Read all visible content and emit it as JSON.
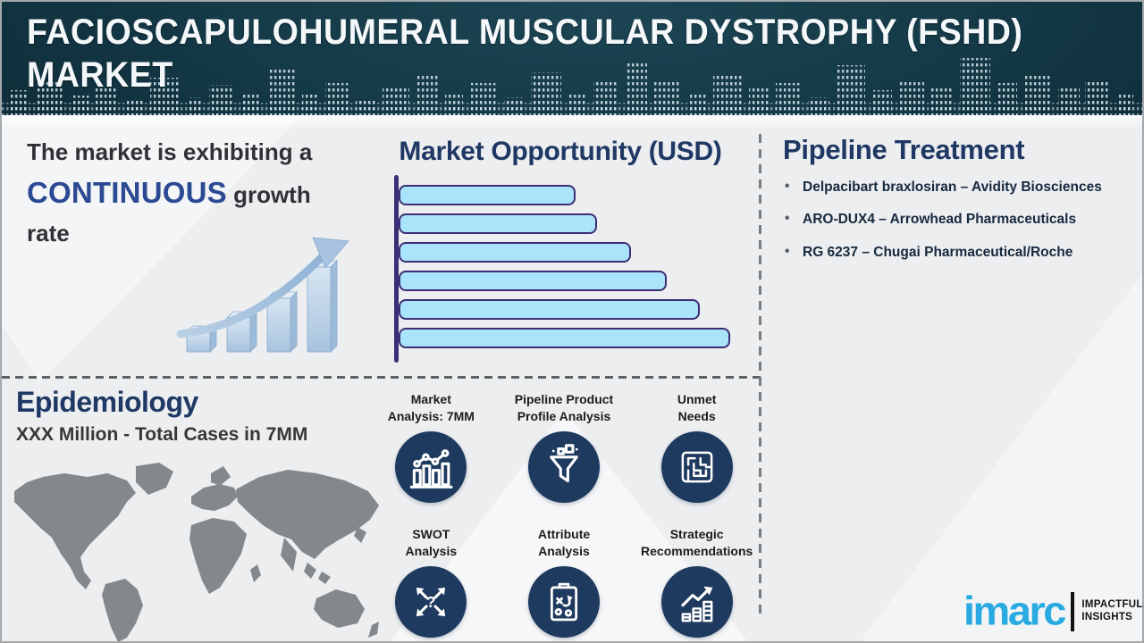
{
  "header": {
    "title": "FACIOSCAPULOHUMERAL MUSCULAR DYSTROPHY (FSHD)\nMARKET"
  },
  "growth_statement": {
    "prefix": "The market is exhibiting a",
    "highlight": "CONTINUOUS",
    "suffix": " growth\nrate"
  },
  "epidemiology": {
    "title": "Epidemiology",
    "subtitle": "XXX Million - Total Cases in 7MM"
  },
  "chart_data": {
    "type": "bar",
    "orientation": "horizontal",
    "title": "Market Opportunity (USD)",
    "categories": [
      "bar-1",
      "bar-2",
      "bar-3",
      "bar-4",
      "bar-5",
      "bar-6"
    ],
    "values_pct_of_plot": [
      49.7,
      55.8,
      65.3,
      75.4,
      84.7,
      93.2
    ],
    "note": "No numeric axis labels shown; bar lengths estimated as % of plot width, increasing top to bottom",
    "xlabel": "",
    "ylabel": "",
    "grid": false,
    "legend": false,
    "bar_fill": "#a9e4fa",
    "bar_border": "#3b2e76"
  },
  "features": {
    "items": [
      {
        "label": "Market\nAnalysis: 7MM",
        "icon": "bar-chart-trend-icon"
      },
      {
        "label": "Pipeline Product\nProfile Analysis",
        "icon": "funnel-icon"
      },
      {
        "label": "Unmet\nNeeds",
        "icon": "maze-icon"
      },
      {
        "label": "SWOT\nAnalysis",
        "icon": "swot-arrows-question-icon"
      },
      {
        "label": "Attribute\nAnalysis",
        "icon": "clipboard-strategy-icon"
      },
      {
        "label": "Strategic\nRecommendations",
        "icon": "growth-arrow-bars-icon"
      }
    ]
  },
  "pipeline": {
    "title": "Pipeline Treatment",
    "items": [
      "Delpacibart braxlosiran – Avidity Biosciences",
      "ARO-DUX4 – Arrowhead Pharmaceuticals",
      "RG 6237 – Chugai Pharmaceutical/Roche"
    ]
  },
  "logo": {
    "brand": "imarc",
    "tagline": "IMPACTFUL\nINSIGHTS"
  },
  "colors": {
    "accent_navy": "#1f3864",
    "highlight_blue": "#2c4a94",
    "bar_fill": "#a9e4fa",
    "bar_border": "#3b2e76",
    "icon_circle": "#1e3a5f",
    "brand_blue": "#29abe2",
    "header_bg": "#12313d",
    "map_gray": "#84888b"
  }
}
